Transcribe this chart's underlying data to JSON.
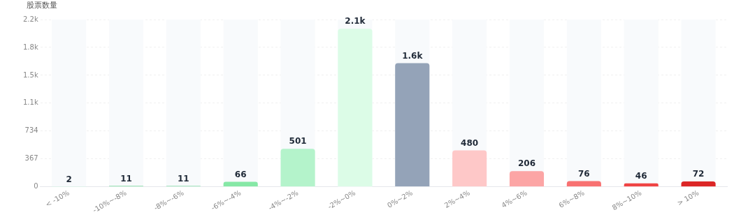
{
  "chart_data": {
    "type": "bar",
    "ylabel": "股票数量",
    "categories": [
      "< -10%",
      "-10%~-8%",
      "-8%~-6%",
      "-6%~-4%",
      "-4%~-2%",
      "-2%~0%",
      "0%~2%",
      "2%~4%",
      "4%~6%",
      "6%~8%",
      "8%~10%",
      "> 10%"
    ],
    "values": [
      2,
      11,
      11,
      66,
      501,
      2081,
      1629,
      480,
      206,
      76,
      46,
      72
    ],
    "value_labels": [
      "2",
      "11",
      "11",
      "66",
      "501",
      "2.1k",
      "1.6k",
      "480",
      "206",
      "76",
      "46",
      "72"
    ],
    "colors": [
      "#86e0a8",
      "#5fcf86",
      "#6fd595",
      "#86e8a6",
      "#b4f3cb",
      "#dcfce7",
      "#94a3b8",
      "#fec8c8",
      "#fca5a5",
      "#f87171",
      "#ef4444",
      "#dc2626"
    ],
    "ylim": [
      0,
      2202
    ],
    "yticks": [
      0,
      367,
      734,
      {
        "value": 1101,
        "label": "1.1k"
      },
      {
        "value": 1468,
        "label": "1.5k"
      },
      {
        "value": 1835,
        "label": "1.8k"
      },
      {
        "value": 2202,
        "label": "2.2k"
      }
    ],
    "grid": "y"
  }
}
